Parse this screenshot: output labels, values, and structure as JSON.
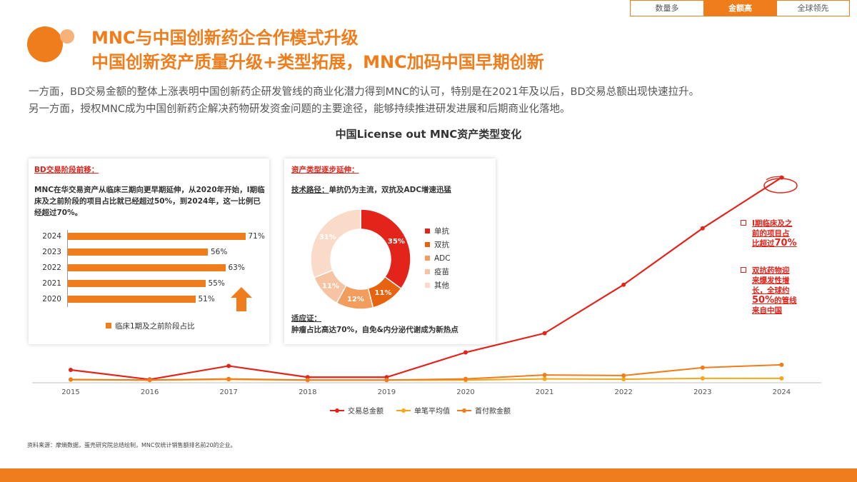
{
  "tabs": [
    {
      "label": "数量多",
      "active": false
    },
    {
      "label": "金额高",
      "active": true
    },
    {
      "label": "全球领先",
      "active": false
    }
  ],
  "title": {
    "line1": "MNC与中国创新药企合作模式升级",
    "line2": "中国创新资产质量升级+类型拓展，MNC加码中国早期创新"
  },
  "intro": {
    "line1": "一方面，BD交易金额的整体上涨表明中国创新药企研发管线的商业化潜力得到MNC的认可，特别是在2021年及以后，BD交易总额出现快速拉升。",
    "line2": "另一方面，授权MNC成为中国创新药企解决药物研发资金问题的主要途径，能够持续推进研发进展和后期商业化落地。"
  },
  "chart_title": "中国License out MNC资产类型变化",
  "left_card": {
    "heading": "BD交易阶段前移：",
    "description": "MNC在华交易资产从临床三期向更早期延伸，从2020年开始，I期临床及之前阶段的项目占比就已经超过50%，到2024年，这一比例已经超过70%。",
    "legend": "临床1期及之前阶段占比"
  },
  "right_card": {
    "heading": "资产类型逐步延伸：",
    "tech_label": "技术路径：",
    "tech_text": "单抗仍为主流，双抗及ADC增速迅猛",
    "indication_label": "适应证：",
    "indication_text": "肿瘤占比高达70%，自免&内分泌代谢成为新热点"
  },
  "annotations": {
    "a1_line1": "I期临床及之",
    "a1_line2": "前的项目占",
    "a1_line3": "比超过",
    "a1_big": "70%",
    "a2_line1": "双抗药物迎",
    "a2_line2": "来爆发性增",
    "a2_line3": "长，全球约",
    "a2_big": "50%",
    "a2_line4": "的管线",
    "a2_line5": "来自中国"
  },
  "source": "资料来源：摩熵数据，蛋壳研究院总结绘制，MNC仅统计销售额排名前20的企业。",
  "colors": {
    "accent": "#f07d1c",
    "red": "#e2241b",
    "yellow": "#f9a51a"
  },
  "chart_data": [
    {
      "type": "line",
      "title": "中国License out MNC资产类型变化",
      "x": [
        "2015",
        "2016",
        "2017",
        "2018",
        "2019",
        "2020",
        "2021",
        "2022",
        "2023",
        "2024"
      ],
      "series": [
        {
          "name": "交易总金额",
          "color": "#e2241b",
          "values": [
            1.9,
            0.2,
            2.6,
            0.6,
            0.6,
            5.0,
            8.4,
            17.0,
            27.0,
            36.0
          ]
        },
        {
          "name": "单笔平均值",
          "color": "#f9a51a",
          "values": [
            0.15,
            0.1,
            0.2,
            0.1,
            0.1,
            0.1,
            0.3,
            0.25,
            0.4,
            0.4
          ]
        },
        {
          "name": "首付款金额",
          "color": "#f07d1c",
          "values": [
            0.2,
            0.1,
            0.3,
            0.1,
            0.1,
            0.3,
            1.0,
            0.9,
            2.3,
            2.8
          ]
        }
      ],
      "ylim": [
        0,
        40
      ],
      "grid": false,
      "legend": "bottom"
    },
    {
      "type": "bar",
      "orientation": "horizontal",
      "categories": [
        "2024",
        "2023",
        "2022",
        "2021",
        "2020"
      ],
      "values": [
        71,
        56,
        63,
        55,
        51
      ],
      "labels": [
        "71%",
        "56%",
        "63%",
        "55%",
        "51%"
      ],
      "series_name": "临床1期及之前阶段占比",
      "xlim": [
        0,
        100
      ]
    },
    {
      "type": "pie",
      "style": "donut",
      "categories": [
        "单抗",
        "双抗",
        "ADC",
        "疫苗",
        "其他"
      ],
      "values": [
        35,
        11,
        12,
        11,
        31
      ],
      "labels": [
        "35%",
        "11%",
        "12%",
        "11%",
        "31%"
      ],
      "colors": [
        "#e2241b",
        "#e8630f",
        "#f29c5e",
        "#f6c4a2",
        "#fadac8"
      ]
    }
  ]
}
